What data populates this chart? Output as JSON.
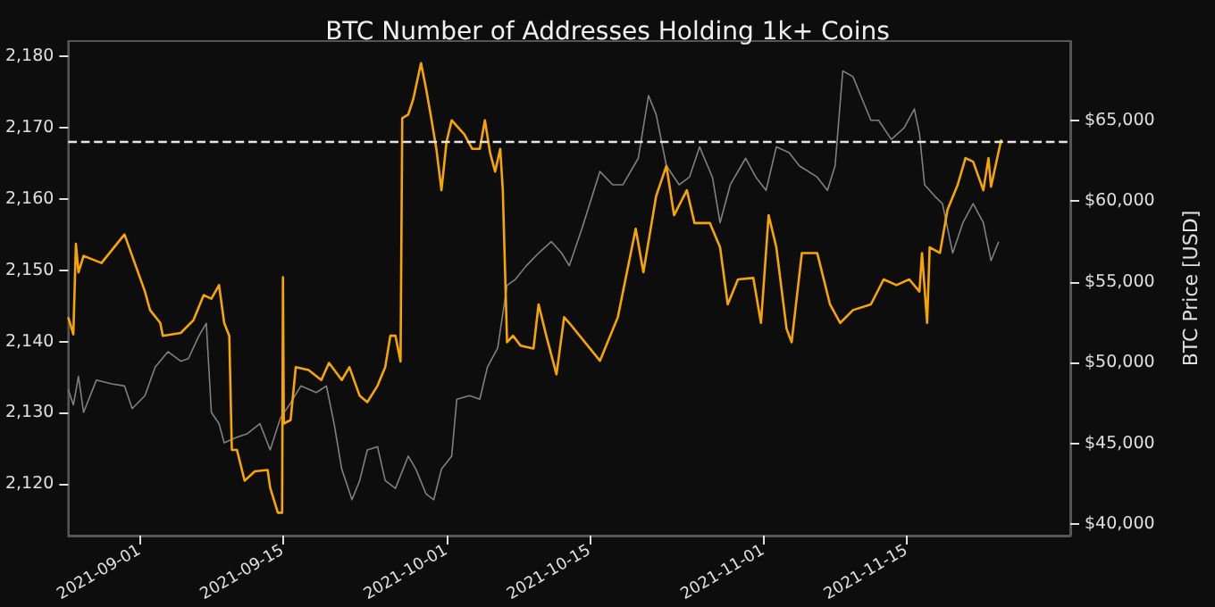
{
  "chart_data": {
    "type": "line",
    "title": "BTC Number of Addresses Holding 1k+ Coins",
    "y2label": "BTC Price [USD]",
    "xlim": [
      "2021-08-25",
      "2021-12-01"
    ],
    "xticks": [
      "2021-09-01",
      "2021-09-15",
      "2021-10-01",
      "2021-10-15",
      "2021-11-01",
      "2021-11-15"
    ],
    "ylim": [
      2112.8,
      2182.1
    ],
    "yticks": [
      {
        "value": 2120,
        "label": "2,120"
      },
      {
        "value": 2130,
        "label": "2,130"
      },
      {
        "value": 2140,
        "label": "2,140"
      },
      {
        "value": 2150,
        "label": "2,150"
      },
      {
        "value": 2160,
        "label": "2,160"
      },
      {
        "value": 2170,
        "label": "2,170"
      },
      {
        "value": 2180,
        "label": "2,180"
      }
    ],
    "y2lim": [
      39300,
      69900
    ],
    "y2ticks": [
      {
        "value": 40000,
        "label": "$40,000"
      },
      {
        "value": 45000,
        "label": "$45,000"
      },
      {
        "value": 50000,
        "label": "$50,000"
      },
      {
        "value": 55000,
        "label": "$55,000"
      },
      {
        "value": 60000,
        "label": "$60,000"
      },
      {
        "value": 65000,
        "label": "$65,000"
      }
    ],
    "grid": false,
    "ref_lines": [
      {
        "axis": "y",
        "value": 2168,
        "color": "#e6e6e6",
        "line_style": "dashed"
      }
    ],
    "series": [
      {
        "axis": "y2",
        "color": "#808080",
        "x": [
          "2021-08-25T00:00",
          "2021-08-25T12:00",
          "2021-08-26T00:00",
          "2021-08-26T12:00",
          "2021-08-27T18:00",
          "2021-08-29T06:00",
          "2021-08-30T12:00",
          "2021-08-31T06:00",
          "2021-09-01T12:00",
          "2021-09-02T12:00",
          "2021-09-03T18:00",
          "2021-09-05T00:00",
          "2021-09-05T18:00",
          "2021-09-06T18:00",
          "2021-09-07T12:00",
          "2021-09-08T00:00",
          "2021-09-08T18:00",
          "2021-09-09T06:00",
          "2021-09-10T12:00",
          "2021-09-11T12:00",
          "2021-09-12T18:00",
          "2021-09-13T18:00",
          "2021-09-14T18:00",
          "2021-09-15T18:00",
          "2021-09-16T18:00",
          "2021-09-18T06:00",
          "2021-09-19T06:00",
          "2021-09-20T00:00",
          "2021-09-20T18:00",
          "2021-09-21T18:00",
          "2021-09-22T12:00",
          "2021-09-23T06:00",
          "2021-09-24T06:00",
          "2021-09-25T00:00",
          "2021-09-26T00:00",
          "2021-09-27T06:00",
          "2021-09-28T00:00",
          "2021-09-29T00:00",
          "2021-09-29T18:00",
          "2021-09-30T12:00",
          "2021-10-01T12:00",
          "2021-10-02T00:00",
          "2021-10-03T06:00",
          "2021-10-04T06:00",
          "2021-10-05T00:00",
          "2021-10-06T00:00",
          "2021-10-06T22:00",
          "2021-10-07T18:00",
          "2021-10-08T18:00",
          "2021-10-10T00:00",
          "2021-10-11T06:00",
          "2021-10-12T06:00",
          "2021-10-13T00:00",
          "2021-10-14T06:00",
          "2021-10-16T00:00",
          "2021-10-17T06:00",
          "2021-10-18T06:00",
          "2021-10-19T18:00",
          "2021-10-20T18:00",
          "2021-10-21T12:00",
          "2021-10-22T12:00",
          "2021-10-23T18:00",
          "2021-10-24T18:00",
          "2021-10-25T18:00",
          "2021-10-27T00:00",
          "2021-10-27T18:00",
          "2021-10-28T18:00",
          "2021-10-30T06:00",
          "2021-10-31T06:00",
          "2021-11-01T06:00",
          "2021-11-02T06:00",
          "2021-11-03T12:00",
          "2021-11-04T12:00",
          "2021-11-06T06:00",
          "2021-11-07T06:00",
          "2021-11-08T00:00",
          "2021-11-08T18:00",
          "2021-11-09T18:00",
          "2021-11-10T12:00",
          "2021-11-11T12:00",
          "2021-11-12T06:00",
          "2021-11-13T12:00",
          "2021-11-14T18:00",
          "2021-11-15T18:00",
          "2021-11-16T06:00",
          "2021-11-16T18:00",
          "2021-11-17T18:00",
          "2021-11-18T12:00",
          "2021-11-19T12:00",
          "2021-11-20T12:00",
          "2021-11-21T12:00",
          "2021-11-22T12:00",
          "2021-11-23T06:00",
          "2021-11-24T00:00"
        ],
        "values": [
          48330,
          47390,
          49150,
          46920,
          48920,
          48690,
          48560,
          47160,
          47960,
          49730,
          50680,
          50090,
          50250,
          51620,
          52440,
          46920,
          46220,
          45040,
          45390,
          45600,
          46220,
          44600,
          46570,
          47510,
          48560,
          48150,
          48560,
          46220,
          43410,
          41520,
          42700,
          44600,
          44800,
          42700,
          42220,
          44220,
          43410,
          41870,
          41520,
          43410,
          44220,
          47740,
          47960,
          47740,
          49730,
          50910,
          54790,
          55160,
          55960,
          56780,
          57490,
          56780,
          56000,
          58310,
          61830,
          61010,
          61010,
          62650,
          66530,
          65350,
          62180,
          61010,
          61480,
          63350,
          61480,
          58660,
          61010,
          62650,
          61480,
          60660,
          63350,
          63000,
          62180,
          61480,
          60660,
          62180,
          68050,
          67700,
          66530,
          65000,
          65000,
          63820,
          64530,
          65700,
          64180,
          61010,
          60300,
          59840,
          56780,
          58660,
          59840,
          58660,
          56310,
          57490
        ]
      },
      {
        "color": "#f7a600",
        "x": [
          "2021-08-25T00:00",
          "2021-08-25T12:00",
          "2021-08-25T18:00",
          "2021-08-26T00:00",
          "2021-08-26T12:00",
          "2021-08-28T06:00",
          "2021-08-30T12:00",
          "2021-08-31T18:00",
          "2021-09-01T12:00",
          "2021-09-02T00:00",
          "2021-09-03T00:00",
          "2021-09-03T06:00",
          "2021-09-05T00:00",
          "2021-09-06T06:00",
          "2021-09-07T06:00",
          "2021-09-08T00:00",
          "2021-09-08T18:00",
          "2021-09-09T06:00",
          "2021-09-09T18:00",
          "2021-09-10T00:00",
          "2021-09-10T12:00",
          "2021-09-11T06:00",
          "2021-09-12T06:00",
          "2021-09-13T12:00",
          "2021-09-13T18:00",
          "2021-09-14T12:00",
          "2021-09-14T22:00",
          "2021-09-15T00:00",
          "2021-09-15T02:00",
          "2021-09-15T18:00",
          "2021-09-16T06:00",
          "2021-09-17T12:00",
          "2021-09-18T18:00",
          "2021-09-19T12:00",
          "2021-09-20T18:00",
          "2021-09-21T12:00",
          "2021-09-22T12:00",
          "2021-09-23T06:00",
          "2021-09-24T06:00",
          "2021-09-25T00:00",
          "2021-09-25T12:00",
          "2021-09-26T00:00",
          "2021-09-26T12:00",
          "2021-09-26T16:00",
          "2021-09-27T06:00",
          "2021-09-27T18:00",
          "2021-09-28T12:00",
          "2021-09-29T00:00",
          "2021-09-29T12:00",
          "2021-09-30T00:00",
          "2021-09-30T12:00",
          "2021-10-01T00:00",
          "2021-10-01T12:00",
          "2021-10-02T18:00",
          "2021-10-03T12:00",
          "2021-10-04T06:00",
          "2021-10-04T18:00",
          "2021-10-05T06:00",
          "2021-10-05T18:00",
          "2021-10-06T06:00",
          "2021-10-06T12:00",
          "2021-10-06T22:00",
          "2021-10-07T12:00",
          "2021-10-08T06:00",
          "2021-10-09T12:00",
          "2021-10-10T00:00",
          "2021-10-10T18:00",
          "2021-10-11T18:00",
          "2021-10-12T12:00",
          "2021-10-13T00:00",
          "2021-10-16T00:00",
          "2021-10-17T18:00",
          "2021-10-19T12:00",
          "2021-10-20T06:00",
          "2021-10-21T12:00",
          "2021-10-22T12:00",
          "2021-10-23T06:00",
          "2021-10-24T12:00",
          "2021-10-25T06:00",
          "2021-10-26T18:00",
          "2021-10-27T18:00",
          "2021-10-28T12:00",
          "2021-10-29T12:00",
          "2021-10-31T00:00",
          "2021-10-31T18:00",
          "2021-11-01T12:00",
          "2021-11-02T06:00",
          "2021-11-03T06:00",
          "2021-11-03T18:00",
          "2021-11-04T18:00",
          "2021-11-06T06:00",
          "2021-11-07T12:00",
          "2021-11-08T12:00",
          "2021-11-09T18:00",
          "2021-11-11T12:00",
          "2021-11-12T18:00",
          "2021-11-14T00:00",
          "2021-11-15T06:00",
          "2021-11-16T06:00",
          "2021-11-16T12:00",
          "2021-11-17T00:00",
          "2021-11-17T06:00",
          "2021-11-18T06:00",
          "2021-11-19T00:00",
          "2021-11-20T00:00",
          "2021-11-20T18:00",
          "2021-11-21T12:00",
          "2021-11-22T12:00",
          "2021-11-23T00:00",
          "2021-11-23T06:00",
          "2021-11-24T06:00"
        ],
        "values": [
          2143.4,
          2141,
          2153.7,
          2149.7,
          2152,
          2151,
          2155,
          2150,
          2147,
          2144.4,
          2142.6,
          2140.8,
          2141.2,
          2143,
          2146.5,
          2146,
          2147.9,
          2142.6,
          2140.8,
          2124.8,
          2124.8,
          2120.5,
          2121.8,
          2122,
          2119.5,
          2116,
          2116,
          2149,
          2128.5,
          2129,
          2136.4,
          2136,
          2134.6,
          2137,
          2134.6,
          2136.4,
          2132.4,
          2131.5,
          2133.8,
          2136.4,
          2140.8,
          2140.8,
          2137.2,
          2171.3,
          2171.8,
          2174,
          2179,
          2175.4,
          2171.3,
          2167,
          2161.2,
          2168,
          2171,
          2169,
          2167,
          2167,
          2171,
          2166.5,
          2163.8,
          2167,
          2161.2,
          2139.9,
          2140.8,
          2139.4,
          2139,
          2145.2,
          2140.8,
          2135.4,
          2143.4,
          2142.6,
          2137.3,
          2143.4,
          2155.8,
          2149.7,
          2160.4,
          2164.6,
          2157.7,
          2161.2,
          2156.6,
          2156.6,
          2153.2,
          2145.2,
          2148.7,
          2148.9,
          2142.6,
          2157.7,
          2153.2,
          2141.8,
          2139.9,
          2152.4,
          2152.4,
          2145.2,
          2142.6,
          2144.4,
          2145.2,
          2148.7,
          2147.9,
          2148.7,
          2147,
          2152.4,
          2142.6,
          2153.2,
          2152.4,
          2158.5,
          2162,
          2165.7,
          2165.2,
          2161.2,
          2165.7,
          2161.7,
          2168.3
        ]
      }
    ]
  }
}
